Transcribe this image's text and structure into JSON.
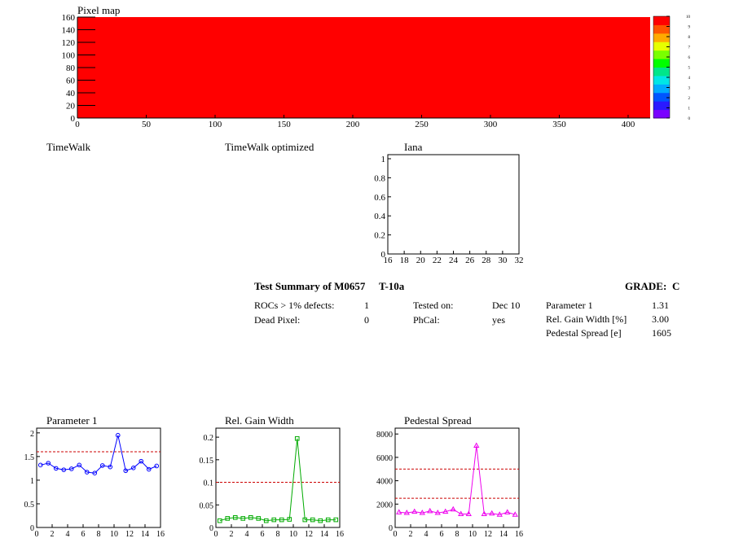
{
  "pixel_map": {
    "title": "Pixel map",
    "fill_color": "#ff0000",
    "x_ticks": [
      0,
      50,
      100,
      150,
      200,
      250,
      300,
      350,
      400
    ],
    "y_ticks": [
      0,
      20,
      40,
      60,
      80,
      100,
      120,
      140,
      160
    ],
    "xlim": [
      0,
      416
    ],
    "ylim": [
      0,
      160
    ],
    "palette_labels": [
      "0",
      "1",
      "2",
      "3",
      "4",
      "5",
      "6",
      "7",
      "8",
      "9",
      "10"
    ]
  },
  "empty_titles": {
    "timewalk": "TimeWalk",
    "timewalk_optimized": "TimeWalk optimized"
  },
  "iana": {
    "title": "Iana",
    "x_ticks": [
      "16",
      "18",
      "20",
      "22",
      "24",
      "26",
      "28",
      "30",
      "32"
    ],
    "y_ticks": [
      "0",
      "0.2",
      "0.4",
      "0.6",
      "0.8",
      "1"
    ]
  },
  "summary": {
    "title": "Test Summary of M0657",
    "test": "T-10a",
    "grade_label": "GRADE:",
    "grade": "C",
    "rows_left": [
      {
        "label": "ROCs > 1% defects:",
        "value": "1"
      },
      {
        "label": "Dead Pixel:",
        "value": "0"
      }
    ],
    "rows_mid": [
      {
        "label": "Tested on:",
        "value": "Dec 10"
      },
      {
        "label": "PhCal:",
        "value": "yes"
      }
    ],
    "rows_right": [
      {
        "label": "Parameter 1",
        "value": "1.31"
      },
      {
        "label": "Rel. Gain Width [%]",
        "value": "3.00"
      },
      {
        "label": "Pedestal Spread [e]",
        "value": "1605"
      }
    ]
  },
  "chart_data": [
    {
      "type": "line",
      "title": "Parameter 1",
      "color": "#0000ff",
      "marker": "circle",
      "x": [
        0.5,
        1.5,
        2.5,
        3.5,
        4.5,
        5.5,
        6.5,
        7.5,
        8.5,
        9.5,
        10.5,
        11.5,
        12.5,
        13.5,
        14.5,
        15.5
      ],
      "values": [
        1.32,
        1.36,
        1.25,
        1.22,
        1.24,
        1.32,
        1.17,
        1.15,
        1.31,
        1.28,
        1.95,
        1.2,
        1.26,
        1.4,
        1.23,
        1.3
      ],
      "xlim": [
        0,
        16
      ],
      "ylim": [
        0,
        2.1
      ],
      "x_ticks": [
        0,
        2,
        4,
        6,
        8,
        10,
        12,
        14,
        16
      ],
      "y_ticks": [
        {
          "v": 0,
          "t": "0"
        },
        {
          "v": 0.5,
          "t": "0.5"
        },
        {
          "v": 1,
          "t": "1"
        },
        {
          "v": 1.5,
          "t": "1.5"
        },
        {
          "v": 2,
          "t": "2"
        }
      ],
      "thresholds": [
        1.6
      ]
    },
    {
      "type": "line",
      "title": "Rel. Gain Width",
      "color": "#00aa00",
      "marker": "square",
      "x": [
        0.5,
        1.5,
        2.5,
        3.5,
        4.5,
        5.5,
        6.5,
        7.5,
        8.5,
        9.5,
        10.5,
        11.5,
        12.5,
        13.5,
        14.5,
        15.5
      ],
      "values": [
        0.015,
        0.02,
        0.022,
        0.02,
        0.022,
        0.02,
        0.015,
        0.017,
        0.017,
        0.018,
        0.197,
        0.017,
        0.017,
        0.015,
        0.017,
        0.017
      ],
      "xlim": [
        0,
        16
      ],
      "ylim": [
        0,
        0.22
      ],
      "x_ticks": [
        0,
        2,
        4,
        6,
        8,
        10,
        12,
        14,
        16
      ],
      "y_ticks": [
        {
          "v": 0,
          "t": "0"
        },
        {
          "v": 0.05,
          "t": "0.05"
        },
        {
          "v": 0.1,
          "t": "0.1"
        },
        {
          "v": 0.15,
          "t": "0.15"
        },
        {
          "v": 0.2,
          "t": "0.2"
        }
      ],
      "thresholds": [
        0.1
      ]
    },
    {
      "type": "line",
      "title": "Pedestal Spread",
      "color": "#ee00ee",
      "marker": "triangle",
      "x": [
        0.5,
        1.5,
        2.5,
        3.5,
        4.5,
        5.5,
        6.5,
        7.5,
        8.5,
        9.5,
        10.5,
        11.5,
        12.5,
        13.5,
        14.5,
        15.5
      ],
      "values": [
        1300,
        1250,
        1350,
        1250,
        1400,
        1250,
        1350,
        1550,
        1150,
        1150,
        7000,
        1150,
        1200,
        1100,
        1300,
        1100
      ],
      "xlim": [
        0,
        16
      ],
      "ylim": [
        0,
        8500
      ],
      "x_ticks": [
        0,
        2,
        4,
        6,
        8,
        10,
        12,
        14,
        16
      ],
      "y_ticks": [
        {
          "v": 0,
          "t": "0"
        },
        {
          "v": 2000,
          "t": "2000"
        },
        {
          "v": 4000,
          "t": "4000"
        },
        {
          "v": 6000,
          "t": "6000"
        },
        {
          "v": 8000,
          "t": "8000"
        }
      ],
      "thresholds": [
        2500,
        5000
      ]
    }
  ]
}
